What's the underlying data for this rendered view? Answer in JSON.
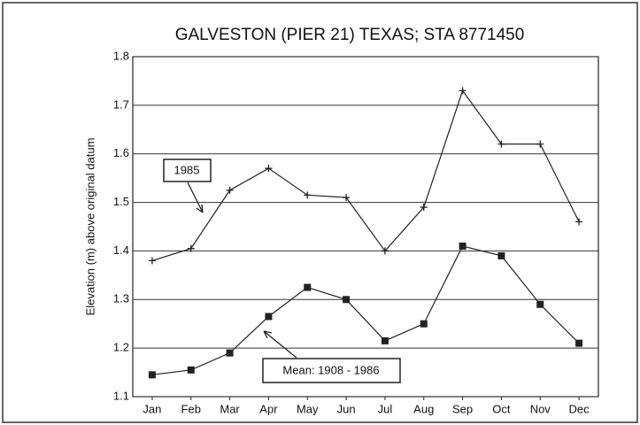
{
  "chart_data": {
    "type": "line",
    "title": "GALVESTON (PIER 21) TEXAS; STA 8771450",
    "y_label": "Elevation (m) above original datum",
    "categories": [
      "Jan",
      "Feb",
      "Mar",
      "Apr",
      "May",
      "Jun",
      "Jul",
      "Aug",
      "Sep",
      "Oct",
      "Nov",
      "Dec"
    ],
    "series": [
      {
        "name": "1985",
        "color": "#222222",
        "marker": "plus",
        "values": [
          1.38,
          1.405,
          1.525,
          1.57,
          1.515,
          1.51,
          1.4,
          1.49,
          1.73,
          1.62,
          1.62,
          1.46
        ]
      },
      {
        "name": "Mean: 1908 - 1986",
        "color": "#222222",
        "marker": "square",
        "values": [
          1.145,
          1.155,
          1.19,
          1.265,
          1.325,
          1.3,
          1.215,
          1.25,
          1.41,
          1.39,
          1.29,
          1.21
        ]
      }
    ],
    "ylim": [
      1.1,
      1.8
    ],
    "yticks": [
      1.1,
      1.2,
      1.3,
      1.4,
      1.5,
      1.6,
      1.7,
      1.8
    ],
    "grid": true
  }
}
